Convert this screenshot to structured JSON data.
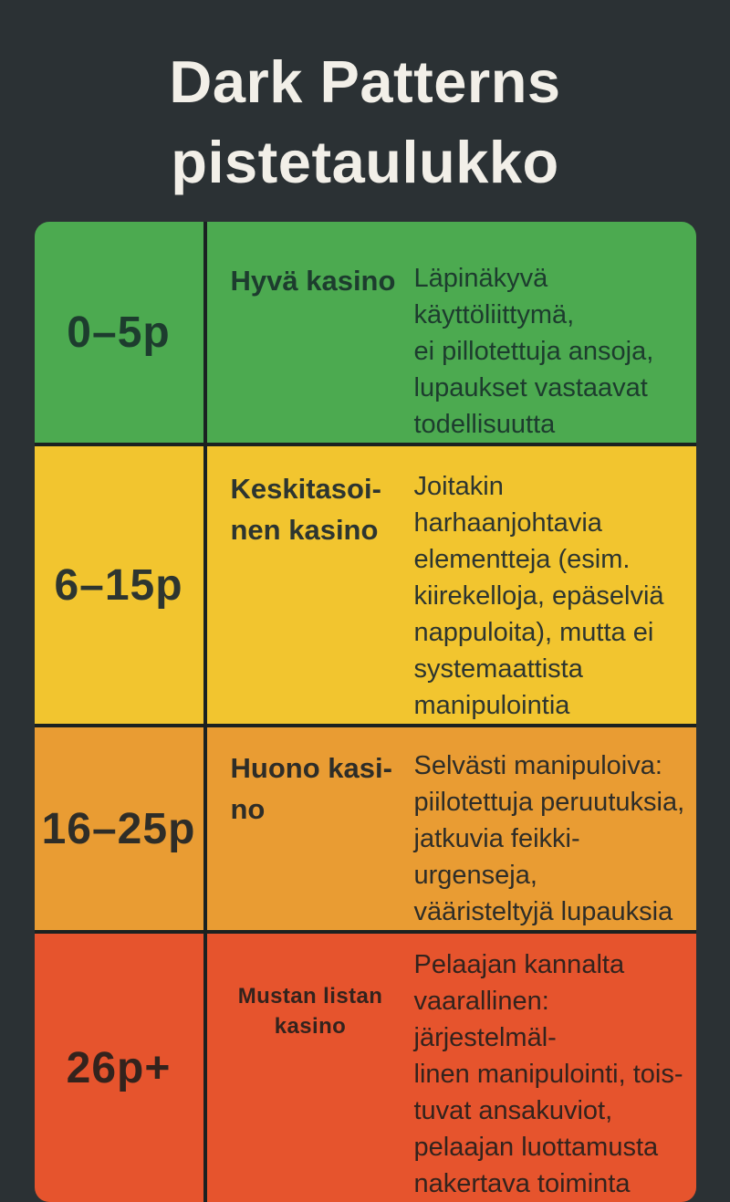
{
  "page": {
    "background": "#2b3134"
  },
  "title": {
    "text": "Dark Patterns\npistetaulukko",
    "color": "#f2efe8"
  },
  "table": {
    "divider_color": "#1a2121",
    "rows": [
      {
        "id": "good-casino",
        "score": "0–5p",
        "label": "Hyvä kasino",
        "description": "Läpinäkyvä käyttöliittymä,\nei pillotettuja ansoja,\nlupaukset vastaavat\ntodellisuutta",
        "bg": "#4caa50",
        "fg": "#1d3c2e"
      },
      {
        "id": "average-casino",
        "score": "6–15p",
        "label": "Keskitasoi-\nnen kasino",
        "description": "Joitakin harhaanjohtavia\nelementteja (esim.\nkiirekelloja, epäselviä\nnappuloita), mutta ei\nsystemaattista\nmanipulointia",
        "bg": "#f2c52f",
        "fg": "#2d3530"
      },
      {
        "id": "bad-casino",
        "score": "16–25p",
        "label": "Huono kasi-\nno",
        "description": "Selvästi manipuloiva:\npiilotettuja peruutuksia,\njatkuvia feikki-urgenseja,\nvääristeltyjä lupauksia",
        "bg": "#e99c33",
        "fg": "#2e2d28"
      },
      {
        "id": "blacklist-casino",
        "score": "26p+",
        "label": "Mustan listan\nkasino",
        "description": "Pelaajan kannalta\nvaarallinen: järjestelmäl-\nlinen manipulointi, tois-\ntuvat ansakuviot,\npelaajan luottamusta\nnakertava toiminta",
        "bg": "#e6542d",
        "fg": "#33231d"
      }
    ]
  },
  "chart_data": {
    "type": "table",
    "title": "Dark Patterns pistetaulukko",
    "rows": [
      {
        "score_range": "0–5p",
        "category": "Hyvä kasino",
        "description": "Läpinäkyvä käyttöliittymä, ei pillotettuja ansoja, lupaukset vastaavat todellisuutta",
        "color": "#4caa50"
      },
      {
        "score_range": "6–15p",
        "category": "Keskitasoinen kasino",
        "description": "Joitakin harhaanjohtavia elementteja (esim. kiirekelloja, epäselviä nappuloita), mutta ei systemaattista manipulointia",
        "color": "#f2c52f"
      },
      {
        "score_range": "16–25p",
        "category": "Huono kasino",
        "description": "Selvästi manipuloiva: piilotettuja peruutuksia, jatkuvia feikki-urgenseja, vääristeltyjä lupauksia",
        "color": "#e99c33"
      },
      {
        "score_range": "26p+",
        "category": "Mustan listan kasino",
        "description": "Pelaajan kannalta vaarallinen: järjestelmällinen manipulointi, toistuvat ansakuviot, pelaajan luottamusta nakertava toiminta",
        "color": "#e6542d"
      }
    ]
  }
}
